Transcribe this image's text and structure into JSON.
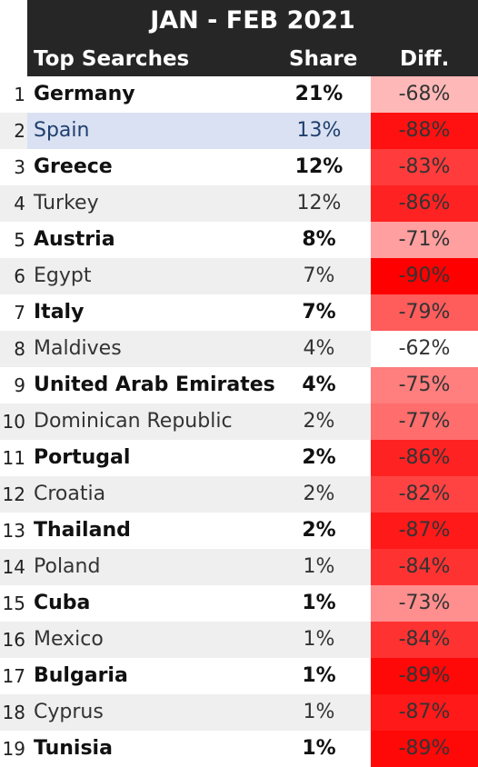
{
  "chart_data": {
    "type": "table",
    "title": "JAN - FEB  2021",
    "columns": [
      "Top Searches",
      "Share",
      "Diff."
    ],
    "rows": [
      {
        "rank": "1",
        "name": "Germany",
        "share": "21%",
        "diff": "-68%",
        "share_value": 21,
        "diff_value": -68,
        "bold": true
      },
      {
        "rank": "2",
        "name": "Spain",
        "share": "13%",
        "diff": "-88%",
        "share_value": 13,
        "diff_value": -88,
        "bold": false,
        "highlight": true
      },
      {
        "rank": "3",
        "name": "Greece",
        "share": "12%",
        "diff": "-83%",
        "share_value": 12,
        "diff_value": -83,
        "bold": true
      },
      {
        "rank": "4",
        "name": "Turkey",
        "share": "12%",
        "diff": "-86%",
        "share_value": 12,
        "diff_value": -86,
        "bold": false
      },
      {
        "rank": "5",
        "name": "Austria",
        "share": "8%",
        "diff": "-71%",
        "share_value": 8,
        "diff_value": -71,
        "bold": true
      },
      {
        "rank": "6",
        "name": "Egypt",
        "share": "7%",
        "diff": "-90%",
        "share_value": 7,
        "diff_value": -90,
        "bold": false
      },
      {
        "rank": "7",
        "name": "Italy",
        "share": "7%",
        "diff": "-79%",
        "share_value": 7,
        "diff_value": -79,
        "bold": true
      },
      {
        "rank": "8",
        "name": "Maldives",
        "share": "4%",
        "diff": "-62%",
        "share_value": 4,
        "diff_value": -62,
        "bold": false
      },
      {
        "rank": "9",
        "name": "United Arab Emirates",
        "share": "4%",
        "diff": "-75%",
        "share_value": 4,
        "diff_value": -75,
        "bold": true
      },
      {
        "rank": "10",
        "name": "Dominican Republic",
        "share": "2%",
        "diff": "-77%",
        "share_value": 2,
        "diff_value": -77,
        "bold": false
      },
      {
        "rank": "11",
        "name": "Portugal",
        "share": "2%",
        "diff": "-86%",
        "share_value": 2,
        "diff_value": -86,
        "bold": true
      },
      {
        "rank": "12",
        "name": "Croatia",
        "share": "2%",
        "diff": "-82%",
        "share_value": 2,
        "diff_value": -82,
        "bold": false
      },
      {
        "rank": "13",
        "name": "Thailand",
        "share": "2%",
        "diff": "-87%",
        "share_value": 2,
        "diff_value": -87,
        "bold": true
      },
      {
        "rank": "14",
        "name": "Poland",
        "share": "1%",
        "diff": "-84%",
        "share_value": 1,
        "diff_value": -84,
        "bold": false
      },
      {
        "rank": "15",
        "name": "Cuba",
        "share": "1%",
        "diff": "-73%",
        "share_value": 1,
        "diff_value": -73,
        "bold": true
      },
      {
        "rank": "16",
        "name": "Mexico",
        "share": "1%",
        "diff": "-84%",
        "share_value": 1,
        "diff_value": -84,
        "bold": false
      },
      {
        "rank": "17",
        "name": "Bulgaria",
        "share": "1%",
        "diff": "-89%",
        "share_value": 1,
        "diff_value": -89,
        "bold": true
      },
      {
        "rank": "18",
        "name": "Cyprus",
        "share": "1%",
        "diff": "-87%",
        "share_value": 1,
        "diff_value": -87,
        "bold": false
      },
      {
        "rank": "19",
        "name": "Tunisia",
        "share": "1%",
        "diff": "-89%",
        "share_value": 1,
        "diff_value": -89,
        "bold": true
      }
    ],
    "colors": {
      "header_bg": "#262626",
      "header_text": "#ffffff",
      "highlight_row": "#d9e1f2",
      "alt_row": "#efefef",
      "diff_scale_light": "#ffffff",
      "diff_scale_dark": "#ff0000"
    }
  }
}
